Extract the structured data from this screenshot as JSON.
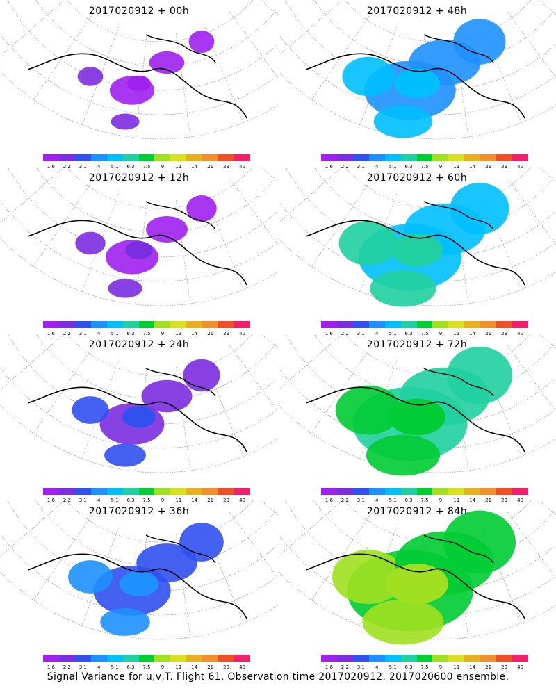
{
  "panels": [
    {
      "title": "2017020912 + 00h",
      "variance_level": 0.05
    },
    {
      "title": "2017020912 + 48h",
      "variance_level": 0.45
    },
    {
      "title": "2017020912 + 12h",
      "variance_level": 0.12
    },
    {
      "title": "2017020912 + 60h",
      "variance_level": 0.55
    },
    {
      "title": "2017020912 + 24h",
      "variance_level": 0.22
    },
    {
      "title": "2017020912 + 72h",
      "variance_level": 0.65
    },
    {
      "title": "2017020912 + 36h",
      "variance_level": 0.33
    },
    {
      "title": "2017020912 + 84h",
      "variance_level": 0.75
    }
  ],
  "colorbar": {
    "labels": [
      "1.6",
      "2.2",
      "3.1",
      "4",
      "5.1",
      "6.3",
      "7.5",
      "9",
      "11",
      "14",
      "21",
      "29",
      "40"
    ],
    "colors": [
      "#a020f0",
      "#7b2ee0",
      "#3050f0",
      "#1e90ff",
      "#00bfff",
      "#20d0a0",
      "#00cc33",
      "#a0e020",
      "#d8e020",
      "#e6b020",
      "#f09030",
      "#f05028",
      "#f0206a"
    ]
  },
  "caption": "Signal Variance for u,v,T. Flight 61. Observation time 2017020912. 2017020600 ensemble."
}
